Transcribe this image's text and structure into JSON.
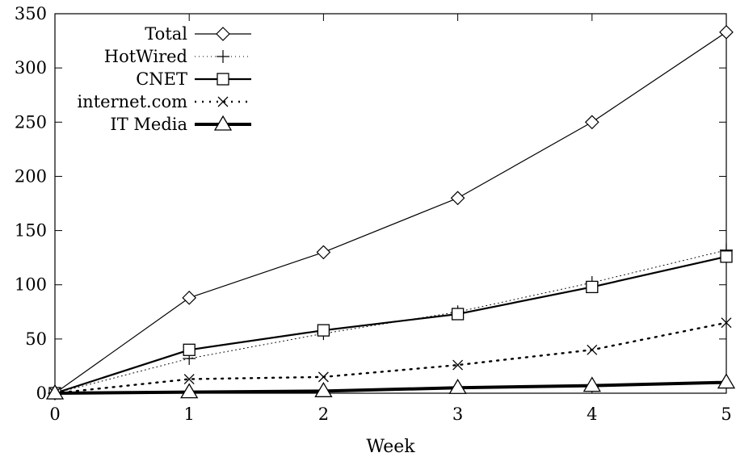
{
  "chart_data": {
    "type": "line",
    "title": "",
    "xlabel": "Week",
    "ylabel": "",
    "xlim": [
      0,
      5
    ],
    "ylim": [
      0,
      350
    ],
    "x": [
      0,
      1,
      2,
      3,
      4,
      5
    ],
    "x_ticks": [
      "0",
      "1",
      "2",
      "3",
      "4",
      "5"
    ],
    "y_ticks": [
      "0",
      "50",
      "100",
      "150",
      "200",
      "250",
      "300",
      "350"
    ],
    "grid": false,
    "legend_position": "top-left",
    "series": [
      {
        "name": "Total",
        "values": [
          0,
          88,
          130,
          180,
          250,
          333
        ],
        "marker": "diamond",
        "line_style": "solid-thin",
        "color": "#000000"
      },
      {
        "name": "HotWired",
        "values": [
          0,
          32,
          55,
          75,
          102,
          132
        ],
        "marker": "plus",
        "line_style": "dotted-fine",
        "color": "#000000"
      },
      {
        "name": "CNET",
        "values": [
          0,
          40,
          58,
          73,
          98,
          126
        ],
        "marker": "square",
        "line_style": "solid-medium",
        "color": "#000000"
      },
      {
        "name": "internet.com",
        "values": [
          0,
          13,
          15,
          26,
          40,
          65
        ],
        "marker": "cross",
        "line_style": "dotted-bold",
        "color": "#000000"
      },
      {
        "name": "IT Media",
        "values": [
          0,
          1,
          2,
          5,
          7,
          10
        ],
        "marker": "triangle",
        "line_style": "solid-thick",
        "color": "#000000"
      }
    ]
  }
}
